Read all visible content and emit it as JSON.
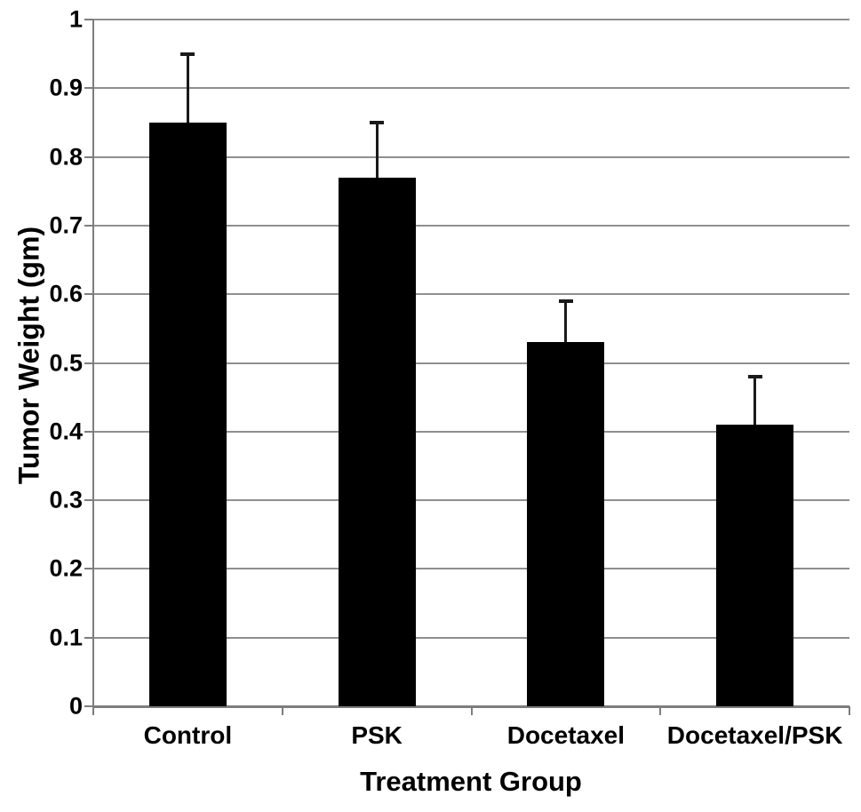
{
  "figure": {
    "background": "#ffffff"
  },
  "chart_data": {
    "type": "bar",
    "title": "",
    "xlabel": "Treatment Group",
    "ylabel": "Tumor Weight (gm)",
    "categories": [
      "Control",
      "PSK",
      "Docetaxel",
      "Docetaxel/PSK"
    ],
    "values": [
      0.85,
      0.77,
      0.53,
      0.41
    ],
    "error_plus": [
      0.1,
      0.08,
      0.06,
      0.07
    ],
    "error_tops": [
      0.95,
      0.85,
      0.59,
      0.48
    ],
    "ylim": [
      0,
      1
    ],
    "ytick_step": 0.1,
    "ytick_labels": [
      "0",
      "0.1",
      "0.2",
      "0.3",
      "0.4",
      "0.5",
      "0.6",
      "0.7",
      "0.8",
      "0.9",
      "1"
    ],
    "grid": true,
    "legend": false,
    "colors": {
      "bar": "#000000",
      "gridline": "#8f8f8f",
      "axis": "#7d7d7d",
      "error_bar": "#1a1a1a",
      "text": "#000000"
    }
  }
}
